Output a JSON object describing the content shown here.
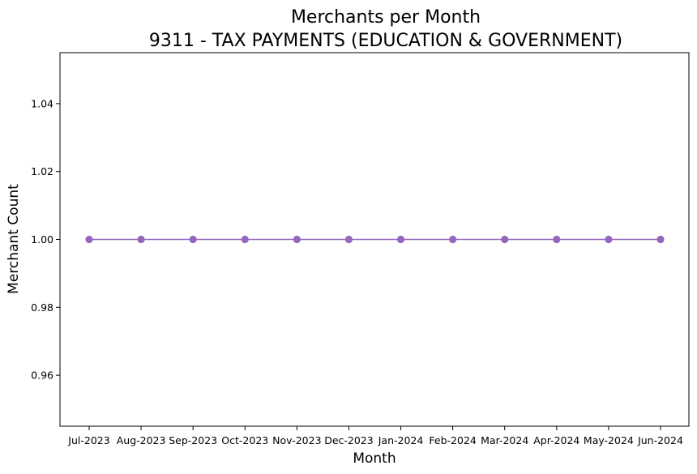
{
  "chart_data": {
    "type": "line",
    "title": "Merchants per Month",
    "subtitle": "9311 - TAX PAYMENTS (EDUCATION & GOVERNMENT)",
    "xlabel": "Month",
    "ylabel": "Merchant Count",
    "categories": [
      "Jul-2023",
      "Aug-2023",
      "Sep-2023",
      "Oct-2023",
      "Nov-2023",
      "Dec-2023",
      "Jan-2024",
      "Feb-2024",
      "Mar-2024",
      "Apr-2024",
      "May-2024",
      "Jun-2024"
    ],
    "series": [
      {
        "values": [
          1,
          1,
          1,
          1,
          1,
          1,
          1,
          1,
          1,
          1,
          1,
          1
        ],
        "color": "#9467bd",
        "marker": "circle"
      }
    ],
    "ylim": [
      0.945,
      1.055
    ],
    "yticks": [
      "0.96",
      "0.98",
      "1.00",
      "1.02",
      "1.04"
    ],
    "grid": false,
    "legend": "none"
  }
}
